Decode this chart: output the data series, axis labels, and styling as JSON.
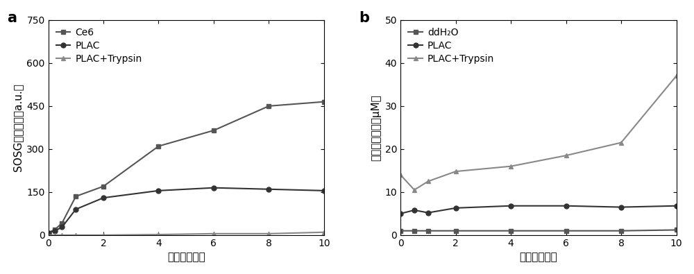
{
  "panel_a": {
    "label": "a",
    "ylabel": "SOSG荧光强度（a.u.）",
    "xlabel": "时间（分钟）",
    "ylim": [
      0,
      750
    ],
    "yticks": [
      0,
      150,
      300,
      450,
      600,
      750
    ],
    "xlim": [
      0,
      10
    ],
    "xticks": [
      0,
      2,
      4,
      6,
      8,
      10
    ],
    "series": [
      {
        "label": "Ce6",
        "marker": "s",
        "color": "#555555",
        "x": [
          0,
          0.25,
          0.5,
          1,
          2,
          4,
          6,
          8,
          10
        ],
        "y": [
          8,
          20,
          42,
          135,
          170,
          310,
          365,
          450,
          465
        ]
      },
      {
        "label": "PLAC",
        "marker": "o",
        "color": "#333333",
        "x": [
          0,
          0.25,
          0.5,
          1,
          2,
          4,
          6,
          8,
          10
        ],
        "y": [
          8,
          15,
          28,
          90,
          130,
          155,
          165,
          160,
          155
        ]
      },
      {
        "label": "PLAC+Trypsin",
        "marker": "^",
        "color": "#888888",
        "x": [
          0,
          0.25,
          0.5,
          1,
          2,
          4,
          6,
          8,
          10
        ],
        "y": [
          0,
          0,
          0,
          0,
          0,
          2,
          5,
          5,
          10
        ]
      }
    ]
  },
  "panel_b": {
    "label": "b",
    "ylabel": "亚砂酸盐水平（μM）",
    "xlabel": "时间（分钟）",
    "ylim": [
      0,
      50
    ],
    "yticks": [
      0,
      10,
      20,
      30,
      40,
      50
    ],
    "xlim": [
      0,
      10
    ],
    "xticks": [
      0,
      2,
      4,
      6,
      8,
      10
    ],
    "series": [
      {
        "label": "ddH₂O",
        "marker": "s",
        "color": "#555555",
        "x": [
          0,
          0.5,
          1,
          2,
          4,
          6,
          8,
          10
        ],
        "y": [
          1.0,
          1.0,
          1.0,
          1.0,
          1.0,
          1.0,
          1.0,
          1.2
        ]
      },
      {
        "label": "PLAC",
        "marker": "o",
        "color": "#333333",
        "x": [
          0,
          0.5,
          1,
          2,
          4,
          6,
          8,
          10
        ],
        "y": [
          5.0,
          5.8,
          5.2,
          6.3,
          6.8,
          6.8,
          6.5,
          6.8
        ]
      },
      {
        "label": "PLAC+Trypsin",
        "marker": "^",
        "color": "#888888",
        "x": [
          0,
          0.5,
          1,
          2,
          4,
          6,
          8,
          10
        ],
        "y": [
          14.0,
          10.5,
          12.5,
          14.8,
          16.0,
          18.5,
          21.5,
          37.0
        ]
      }
    ]
  },
  "figure_bg": "#ffffff",
  "axes_bg": "#ffffff",
  "line_width": 1.5,
  "marker_size": 5,
  "font_size_label": 11,
  "font_size_tick": 10,
  "font_size_legend": 10,
  "font_size_panel_label": 15
}
